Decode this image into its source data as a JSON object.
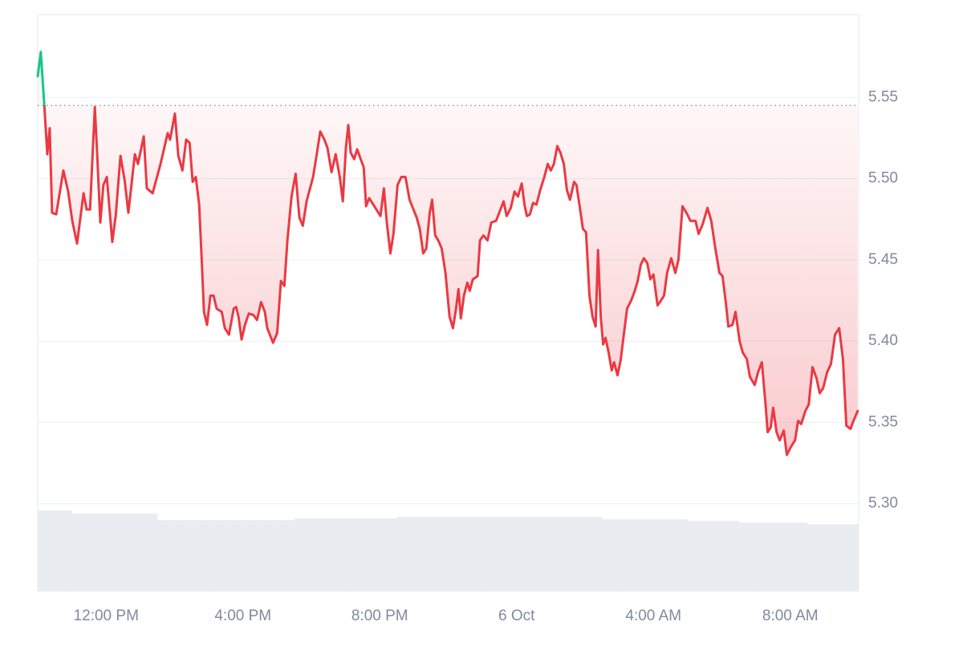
{
  "chart_data": {
    "type": "line",
    "baseline": 5.545,
    "color_up": "#16c784",
    "color_down": "#ea3943",
    "grid": true,
    "xlim": [
      10,
      34
    ],
    "xticks": [
      {
        "value": 12,
        "label": "12:00 PM"
      },
      {
        "value": 16,
        "label": "4:00 PM"
      },
      {
        "value": 20,
        "label": "8:00 PM"
      },
      {
        "value": 24,
        "label": "6 Oct"
      },
      {
        "value": 28,
        "label": "4:00 AM"
      },
      {
        "value": 32,
        "label": "8:00 AM"
      }
    ],
    "ylim": [
      5.246,
      5.601
    ],
    "yticks": [
      {
        "value": 5.3,
        "label": "5.30"
      },
      5.35,
      {
        "value": 5.4,
        "label": "5.40"
      },
      5.45,
      {
        "value": 5.5,
        "label": "5.50"
      },
      5.55
    ],
    "x": [
      10.0,
      10.09,
      10.19,
      10.28,
      10.35,
      10.42,
      10.54,
      10.75,
      10.89,
      11.01,
      11.15,
      11.34,
      11.43,
      11.53,
      11.67,
      11.74,
      11.83,
      11.92,
      12.02,
      12.18,
      12.28,
      12.42,
      12.54,
      12.65,
      12.84,
      12.93,
      13.1,
      13.19,
      13.36,
      13.59,
      13.8,
      13.87,
      14.01,
      14.11,
      14.23,
      14.34,
      14.44,
      14.53,
      14.62,
      14.72,
      14.79,
      14.86,
      14.95,
      15.05,
      15.14,
      15.23,
      15.38,
      15.47,
      15.59,
      15.73,
      15.8,
      15.87,
      15.96,
      16.06,
      16.17,
      16.31,
      16.41,
      16.53,
      16.64,
      16.71,
      16.88,
      17.0,
      17.11,
      17.21,
      17.3,
      17.42,
      17.54,
      17.65,
      17.75,
      17.86,
      18.05,
      18.15,
      18.26,
      18.38,
      18.47,
      18.59,
      18.71,
      18.83,
      18.92,
      19.01,
      19.08,
      19.15,
      19.25,
      19.34,
      19.44,
      19.53,
      19.6,
      19.69,
      19.81,
      20.02,
      20.12,
      20.21,
      20.31,
      20.4,
      20.52,
      20.63,
      20.75,
      20.87,
      21.08,
      21.17,
      21.27,
      21.36,
      21.46,
      21.53,
      21.62,
      21.71,
      21.81,
      21.92,
      22.04,
      22.14,
      22.23,
      22.3,
      22.37,
      22.46,
      22.56,
      22.63,
      22.72,
      22.86,
      22.93,
      23.03,
      23.15,
      23.26,
      23.4,
      23.62,
      23.71,
      23.83,
      23.94,
      24.04,
      24.15,
      24.23,
      24.3,
      24.39,
      24.48,
      24.58,
      24.69,
      24.81,
      24.91,
      25.0,
      25.09,
      25.19,
      25.28,
      25.38,
      25.47,
      25.56,
      25.68,
      25.75,
      25.85,
      25.94,
      26.03,
      26.13,
      26.22,
      26.31,
      26.38,
      26.46,
      26.53,
      26.6,
      26.69,
      26.78,
      26.85,
      26.95,
      27.04,
      27.14,
      27.23,
      27.35,
      27.44,
      27.54,
      27.63,
      27.72,
      27.82,
      27.91,
      28.0,
      28.12,
      28.22,
      28.31,
      28.4,
      28.52,
      28.64,
      28.73,
      28.85,
      28.99,
      29.08,
      29.23,
      29.32,
      29.44,
      29.58,
      29.69,
      29.81,
      29.93,
      30.02,
      30.12,
      30.19,
      30.31,
      30.4,
      30.52,
      30.61,
      30.73,
      30.82,
      30.96,
      31.06,
      31.17,
      31.27,
      31.34,
      31.43,
      31.5,
      31.6,
      31.69,
      31.81,
      31.9,
      32.02,
      32.14,
      32.23,
      32.32,
      32.44,
      32.54,
      32.65,
      32.77,
      32.86,
      32.96,
      33.08,
      33.19,
      33.31,
      33.43,
      33.54,
      33.64,
      33.76,
      33.85,
      33.97
    ],
    "values": [
      5.563,
      5.578,
      5.546,
      5.515,
      5.531,
      5.479,
      5.478,
      5.505,
      5.492,
      5.474,
      5.46,
      5.491,
      5.481,
      5.481,
      5.544,
      5.514,
      5.473,
      5.496,
      5.501,
      5.461,
      5.477,
      5.514,
      5.499,
      5.479,
      5.515,
      5.509,
      5.526,
      5.494,
      5.491,
      5.509,
      5.528,
      5.524,
      5.54,
      5.514,
      5.505,
      5.524,
      5.522,
      5.498,
      5.501,
      5.484,
      5.452,
      5.418,
      5.41,
      5.428,
      5.428,
      5.42,
      5.418,
      5.408,
      5.404,
      5.42,
      5.421,
      5.415,
      5.401,
      5.41,
      5.417,
      5.416,
      5.413,
      5.424,
      5.418,
      5.408,
      5.399,
      5.405,
      5.437,
      5.434,
      5.462,
      5.489,
      5.503,
      5.476,
      5.471,
      5.486,
      5.501,
      5.514,
      5.529,
      5.524,
      5.519,
      5.504,
      5.515,
      5.501,
      5.486,
      5.519,
      5.533,
      5.516,
      5.512,
      5.518,
      5.512,
      5.507,
      5.483,
      5.488,
      5.484,
      5.477,
      5.494,
      5.472,
      5.454,
      5.466,
      5.496,
      5.501,
      5.501,
      5.487,
      5.476,
      5.469,
      5.454,
      5.457,
      5.479,
      5.487,
      5.465,
      5.462,
      5.457,
      5.442,
      5.415,
      5.408,
      5.42,
      5.432,
      5.414,
      5.428,
      5.436,
      5.431,
      5.438,
      5.44,
      5.462,
      5.465,
      5.462,
      5.473,
      5.474,
      5.486,
      5.477,
      5.482,
      5.492,
      5.489,
      5.497,
      5.484,
      5.477,
      5.478,
      5.485,
      5.484,
      5.493,
      5.501,
      5.509,
      5.505,
      5.509,
      5.52,
      5.516,
      5.509,
      5.493,
      5.487,
      5.498,
      5.496,
      5.482,
      5.469,
      5.467,
      5.428,
      5.415,
      5.409,
      5.456,
      5.415,
      5.398,
      5.402,
      5.393,
      5.382,
      5.387,
      5.379,
      5.388,
      5.405,
      5.42,
      5.425,
      5.43,
      5.437,
      5.447,
      5.451,
      5.448,
      5.438,
      5.441,
      5.422,
      5.425,
      5.428,
      5.442,
      5.451,
      5.442,
      5.45,
      5.483,
      5.478,
      5.474,
      5.474,
      5.466,
      5.472,
      5.482,
      5.474,
      5.457,
      5.442,
      5.44,
      5.423,
      5.409,
      5.41,
      5.418,
      5.4,
      5.393,
      5.389,
      5.378,
      5.373,
      5.381,
      5.387,
      5.363,
      5.344,
      5.347,
      5.359,
      5.344,
      5.339,
      5.345,
      5.33,
      5.335,
      5.339,
      5.351,
      5.349,
      5.357,
      5.361,
      5.384,
      5.377,
      5.368,
      5.371,
      5.381,
      5.386,
      5.404,
      5.408,
      5.389,
      5.348,
      5.346,
      5.351,
      5.357
    ],
    "volume": {
      "color": "#e9edf2",
      "ylim": [
        0,
        100
      ],
      "values": [
        100,
        100,
        96,
        96,
        96,
        96,
        96,
        88,
        88,
        88,
        88,
        88,
        88,
        88,
        88,
        90,
        90,
        90,
        90,
        90,
        90,
        92,
        92,
        92,
        92,
        92,
        92,
        92,
        92,
        92,
        92,
        92,
        92,
        89,
        89,
        89,
        89,
        89,
        87,
        87,
        87,
        85,
        85,
        85,
        85,
        83,
        83,
        83
      ]
    }
  }
}
